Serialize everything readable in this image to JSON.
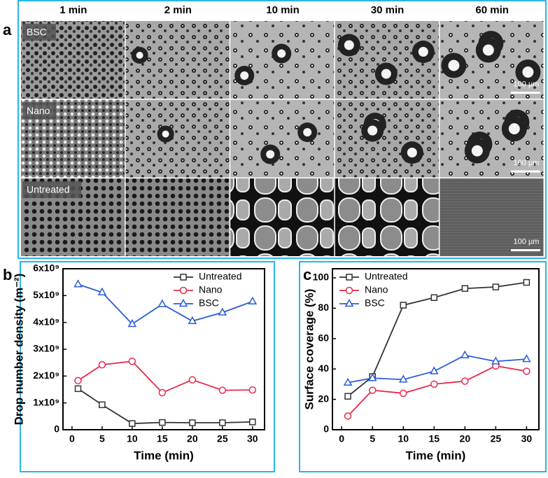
{
  "panel_a": {
    "panel_label": "a",
    "columns": [
      "1 min",
      "2 min",
      "10 min",
      "30 min",
      "60 min"
    ],
    "rows": [
      {
        "label": "BSC",
        "scale_bar": "100 µm"
      },
      {
        "label": "Nano",
        "scale_bar": "100 µm"
      },
      {
        "label": "Untreated",
        "scale_bar": "100 µm"
      }
    ]
  },
  "chart_data": [
    {
      "type": "line",
      "panel_label": "b",
      "x_label": "Time (min)",
      "y_label": "Drop number density (m⁻²)",
      "x": [
        1,
        5,
        10,
        15,
        20,
        25,
        30
      ],
      "xlim": [
        -1.5,
        32
      ],
      "xticks": [
        0,
        5,
        10,
        15,
        20,
        25,
        30
      ],
      "ylim": [
        0,
        6000000000
      ],
      "yticks": [
        0,
        {
          "value": 1000000000,
          "label": "1x10⁹"
        },
        {
          "value": 2000000000,
          "label": "2x10⁹"
        },
        {
          "value": 3000000000,
          "label": "3x10⁹"
        },
        {
          "value": 4000000000,
          "label": "4x10⁹"
        },
        {
          "value": 5000000000,
          "label": "5x10⁹"
        },
        {
          "value": 6000000000,
          "label": "6x10⁹"
        }
      ],
      "legend": "upper right",
      "series": [
        {
          "name": "Untreated",
          "color": "#333333",
          "marker": "square",
          "values": [
            1530000000,
            930000000,
            230000000,
            270000000,
            260000000,
            260000000,
            290000000
          ]
        },
        {
          "name": "Nano",
          "color": "#e8294a",
          "marker": "circle",
          "values": [
            1830000000,
            2420000000,
            2550000000,
            1380000000,
            1860000000,
            1470000000,
            1480000000
          ]
        },
        {
          "name": "BSC",
          "color": "#2a5bdc",
          "marker": "triangle",
          "values": [
            5420000000,
            5120000000,
            3940000000,
            4680000000,
            4050000000,
            4370000000,
            4780000000
          ]
        }
      ]
    },
    {
      "type": "line",
      "panel_label": "c",
      "x_label": "Time (min)",
      "y_label": "Surface coverage (%)",
      "x": [
        1,
        5,
        10,
        15,
        20,
        25,
        30
      ],
      "xlim": [
        -1.5,
        32
      ],
      "xticks": [
        0,
        5,
        10,
        15,
        20,
        25,
        30
      ],
      "ylim": [
        0,
        106
      ],
      "yticks": [
        0,
        20,
        40,
        60,
        80,
        100
      ],
      "legend": "upper left",
      "series": [
        {
          "name": "Untreated",
          "color": "#333333",
          "marker": "square",
          "values": [
            22,
            35,
            82,
            87,
            93,
            94,
            97
          ]
        },
        {
          "name": "Nano",
          "color": "#e8294a",
          "marker": "circle",
          "values": [
            9,
            26,
            24,
            30,
            32,
            42,
            38.5
          ]
        },
        {
          "name": "BSC",
          "color": "#2a5bdc",
          "marker": "triangle",
          "values": [
            31,
            34,
            33,
            38.5,
            49,
            45,
            46.5
          ]
        }
      ]
    }
  ]
}
